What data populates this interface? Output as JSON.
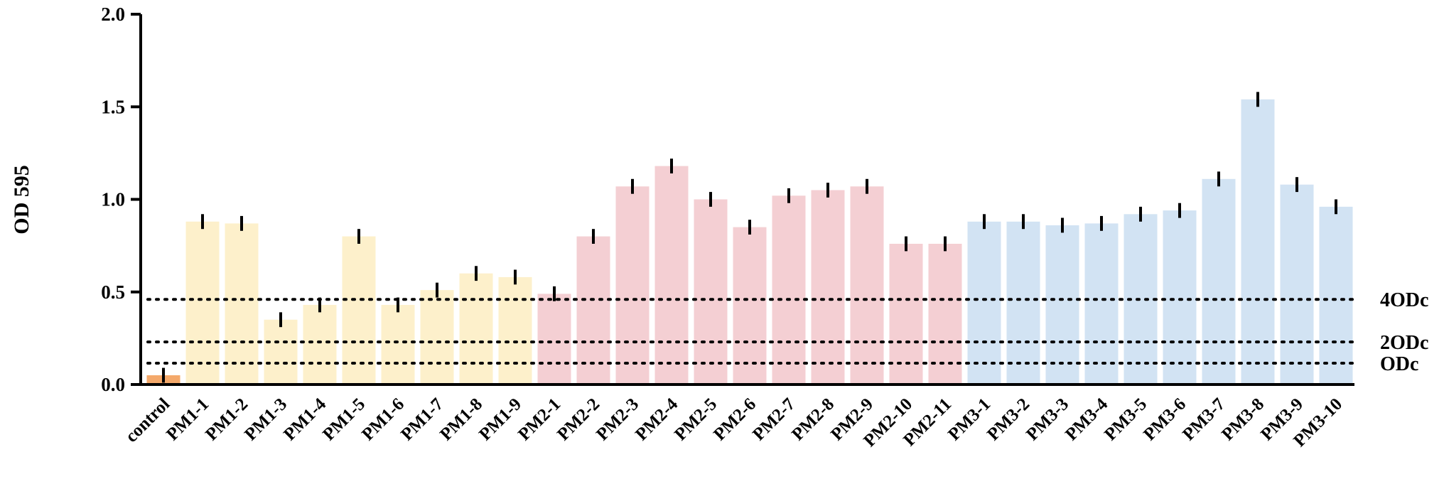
{
  "chart_data": {
    "type": "bar",
    "ylabel": "OD 595",
    "xlabel": "",
    "ylim": [
      0,
      2.0
    ],
    "yticks": [
      "0.0",
      "0.5",
      "1.0",
      "1.5",
      "2.0"
    ],
    "grid": false,
    "categories": [
      "control",
      "PM1-1",
      "PM1-2",
      "PM1-3",
      "PM1-4",
      "PM1-5",
      "PM1-6",
      "PM1-7",
      "PM1-8",
      "PM1-9",
      "PM2-1",
      "PM2-2",
      "PM2-3",
      "PM2-4",
      "PM2-5",
      "PM2-6",
      "PM2-7",
      "PM2-8",
      "PM2-9",
      "PM2-10",
      "PM2-11",
      "PM3-1",
      "PM3-2",
      "PM3-3",
      "PM3-4",
      "PM3-5",
      "PM3-6",
      "PM3-7",
      "PM3-8",
      "PM3-9",
      "PM3-10"
    ],
    "values": [
      0.05,
      0.88,
      0.87,
      0.35,
      0.43,
      0.8,
      0.43,
      0.51,
      0.6,
      0.58,
      0.49,
      0.8,
      1.07,
      1.18,
      1.0,
      0.85,
      1.02,
      1.05,
      1.07,
      0.76,
      0.76,
      0.88,
      0.88,
      0.86,
      0.87,
      0.92,
      0.94,
      1.11,
      1.54,
      1.08,
      0.96
    ],
    "errors": [
      0.04,
      0.04,
      0.04,
      0.04,
      0.04,
      0.04,
      0.04,
      0.04,
      0.04,
      0.04,
      0.04,
      0.04,
      0.04,
      0.04,
      0.04,
      0.04,
      0.04,
      0.04,
      0.04,
      0.04,
      0.04,
      0.04,
      0.04,
      0.04,
      0.04,
      0.04,
      0.04,
      0.04,
      0.04,
      0.04,
      0.04
    ],
    "groups": [
      {
        "name": "control",
        "count": 1,
        "color": "#f4a96b"
      },
      {
        "name": "PM1",
        "count": 9,
        "color": "#fdf0cb"
      },
      {
        "name": "PM2",
        "count": 11,
        "color": "#f4cfd3"
      },
      {
        "name": "PM3",
        "count": 10,
        "color": "#d2e3f3"
      }
    ],
    "reference_lines": [
      {
        "label": "4ODc",
        "value": 0.46
      },
      {
        "label": "2ODc",
        "value": 0.23
      },
      {
        "label": "ODc",
        "value": 0.115
      }
    ]
  }
}
